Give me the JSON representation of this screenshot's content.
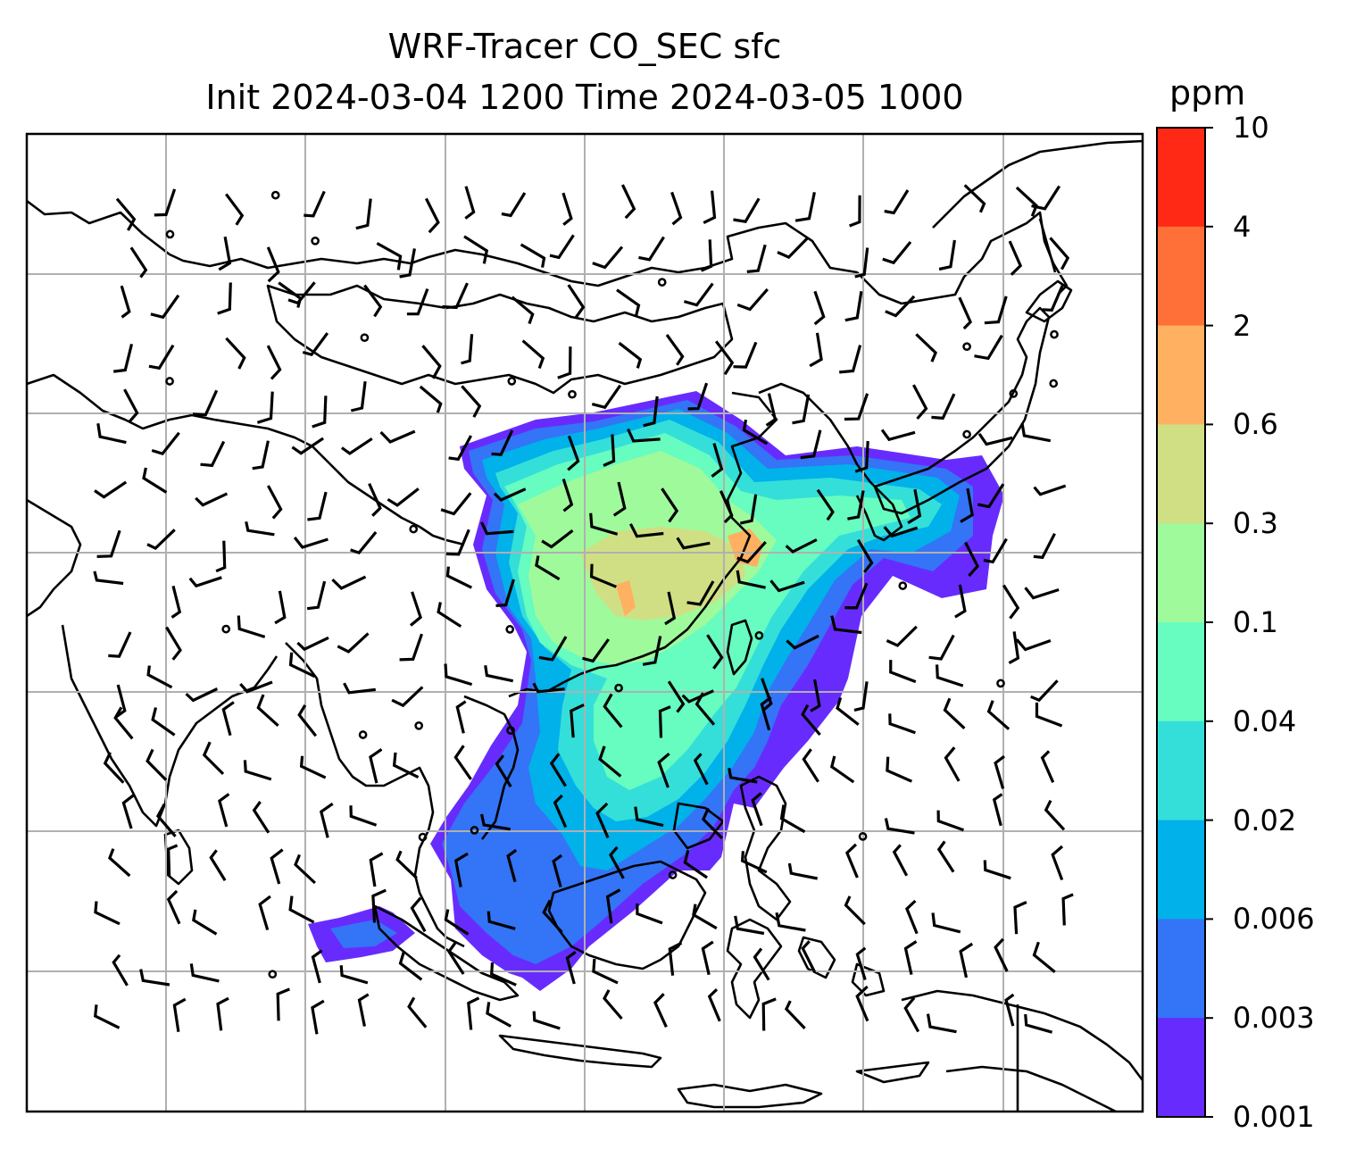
{
  "title": {
    "line1": "WRF-Tracer CO_SEC sfc",
    "line2": "Init 2024-03-04 1200 Time 2024-03-05 1000"
  },
  "colorbar": {
    "unit": "ppm",
    "levels": [
      "10",
      "4",
      "2",
      "0.6",
      "0.3",
      "0.1",
      "0.04",
      "0.02",
      "0.006",
      "0.003",
      "0.001"
    ],
    "colors": [
      "#ff2916",
      "#ff7038",
      "#ffb061",
      "#d0df84",
      "#9ffa9c",
      "#67fcc0",
      "#34dfd9",
      "#00b1ea",
      "#3474f6",
      "#672cfd"
    ]
  },
  "map": {
    "gridlines": true,
    "coastlines": true,
    "wind_barbs": true
  }
}
